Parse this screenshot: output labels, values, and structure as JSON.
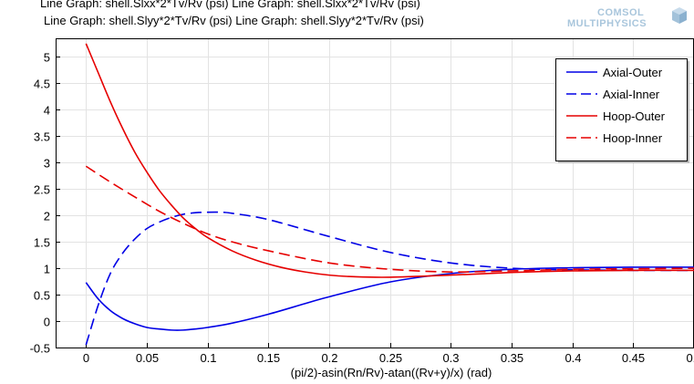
{
  "header_lines": [
    "Line Graph: shell.Slxx*2*Tv/Rv (psi)  Line Graph: shell.Slxx*2*Tv/Rv (psi)",
    "Line Graph: shell.Slyy*2*Tv/Rv (psi)  Line Graph: shell.Slyy*2*Tv/Rv (psi)"
  ],
  "logo": {
    "line1": "COMSOL",
    "line2": "MULTIPHYSICS"
  },
  "colors": {
    "blue": "#0000e6",
    "red": "#e60000",
    "grid": "#e3e3e3",
    "axis": "#000000"
  },
  "chart_data": {
    "type": "line",
    "title": "",
    "xlabel": "(pi/2)-asin(Rn/Rv)-atan((Rv+y)/x)  (rad)",
    "ylabel": "",
    "xlim": [
      -0.025,
      0.5
    ],
    "ylim": [
      -0.5,
      5.35
    ],
    "grid": true,
    "legend_position": "top-right",
    "x_ticks": [
      0,
      0.05,
      0.1,
      0.15,
      0.2,
      0.25,
      0.3,
      0.35,
      0.4,
      0.45,
      0.5
    ],
    "x_tick_labels": [
      "0",
      "0.05",
      "0.1",
      "0.15",
      "0.2",
      "0.25",
      "0.3",
      "0.35",
      "0.4",
      "0.45",
      "0.5"
    ],
    "y_ticks": [
      -0.5,
      0,
      0.5,
      1,
      1.5,
      2,
      2.5,
      3,
      3.5,
      4,
      4.5,
      5
    ],
    "y_tick_labels": [
      "-0.5",
      "0",
      "0.5",
      "1",
      "1.5",
      "2",
      "2.5",
      "3",
      "3.5",
      "4",
      "4.5",
      "5"
    ],
    "series": [
      {
        "name": "Axial-Outer",
        "color": "blue",
        "dash": "solid",
        "x": [
          0,
          0.01,
          0.02,
          0.03,
          0.04,
          0.05,
          0.06,
          0.07,
          0.08,
          0.09,
          0.1,
          0.12,
          0.15,
          0.18,
          0.2,
          0.25,
          0.3,
          0.35,
          0.4,
          0.45,
          0.5
        ],
        "y": [
          0.73,
          0.42,
          0.2,
          0.05,
          -0.05,
          -0.12,
          -0.15,
          -0.17,
          -0.17,
          -0.15,
          -0.12,
          -0.04,
          0.13,
          0.33,
          0.46,
          0.74,
          0.9,
          0.98,
          1.01,
          1.02,
          1.02
        ]
      },
      {
        "name": "Axial-Inner",
        "color": "blue",
        "dash": "dashed",
        "x": [
          0,
          0.01,
          0.02,
          0.03,
          0.04,
          0.05,
          0.06,
          0.07,
          0.08,
          0.09,
          0.1,
          0.11,
          0.12,
          0.15,
          0.2,
          0.25,
          0.3,
          0.35,
          0.4,
          0.45,
          0.5
        ],
        "y": [
          -0.45,
          0.3,
          0.9,
          1.28,
          1.55,
          1.75,
          1.87,
          1.96,
          2.02,
          2.05,
          2.06,
          2.06,
          2.04,
          1.92,
          1.6,
          1.3,
          1.1,
          1.0,
          0.97,
          0.96,
          0.96
        ]
      },
      {
        "name": "Hoop-Outer",
        "color": "red",
        "dash": "solid",
        "x": [
          0,
          0.01,
          0.02,
          0.03,
          0.04,
          0.05,
          0.06,
          0.07,
          0.08,
          0.09,
          0.1,
          0.12,
          0.14,
          0.16,
          0.18,
          0.2,
          0.22,
          0.25,
          0.3,
          0.35,
          0.4,
          0.45,
          0.5
        ],
        "y": [
          5.25,
          4.7,
          4.15,
          3.65,
          3.2,
          2.82,
          2.48,
          2.2,
          1.95,
          1.75,
          1.58,
          1.33,
          1.15,
          1.02,
          0.93,
          0.87,
          0.84,
          0.83,
          0.87,
          0.92,
          0.95,
          0.96,
          0.96
        ]
      },
      {
        "name": "Hoop-Inner",
        "color": "red",
        "dash": "dashed",
        "x": [
          0,
          0.02,
          0.04,
          0.06,
          0.08,
          0.1,
          0.12,
          0.15,
          0.2,
          0.25,
          0.3,
          0.35,
          0.4,
          0.45,
          0.5
        ],
        "y": [
          2.93,
          2.63,
          2.35,
          2.08,
          1.85,
          1.65,
          1.5,
          1.33,
          1.1,
          0.98,
          0.93,
          0.95,
          0.98,
          0.99,
          1.0
        ]
      }
    ]
  }
}
